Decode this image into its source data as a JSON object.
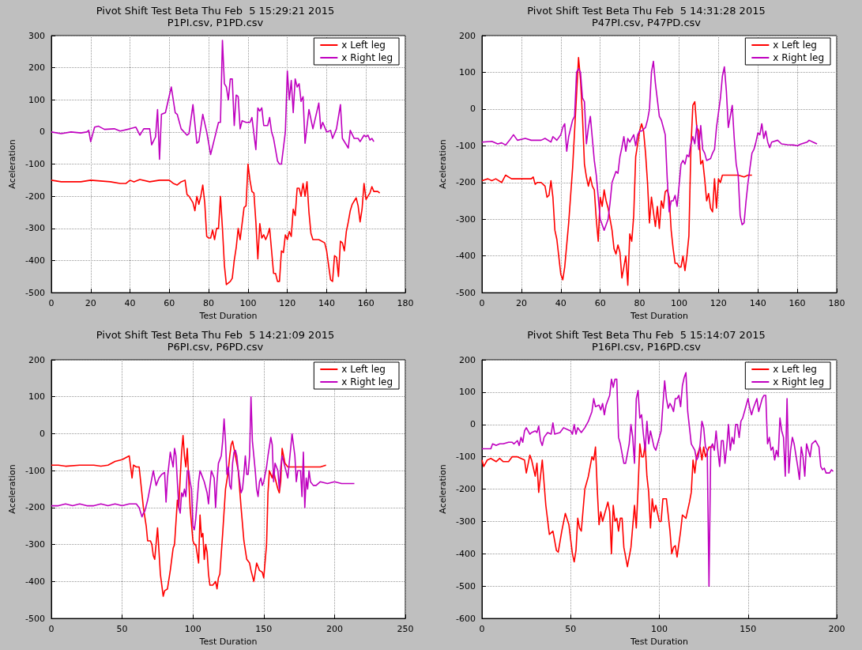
{
  "chart_data": [
    {
      "type": "line",
      "title": "Pivot Shift Test Beta Thu Feb  5 15:29:21 2015",
      "subtitle": "P1PI.csv, P1PD.csv",
      "xlabel": "Test Duration",
      "ylabel": "Aceleration",
      "xlim": [
        0,
        180
      ],
      "xticks": [
        0,
        20,
        40,
        60,
        80,
        100,
        120,
        140,
        160,
        180
      ],
      "ylim": [
        -500,
        300
      ],
      "yticks": [
        -500,
        -400,
        -300,
        -200,
        -100,
        0,
        100,
        200,
        300
      ],
      "grid": true,
      "legend": "top right",
      "series": [
        {
          "name": "x Left leg",
          "color": "#ff0000",
          "x": [
            0,
            5,
            10,
            15,
            20,
            30,
            35,
            38,
            40,
            42,
            45,
            50,
            55,
            60,
            62,
            64,
            66,
            68,
            69,
            70,
            72,
            73,
            74,
            75,
            76,
            77,
            78,
            79,
            80,
            81,
            82,
            83,
            84,
            85,
            86,
            87,
            88,
            89,
            90,
            91,
            92,
            93,
            94,
            95,
            96,
            98,
            99,
            100,
            101,
            102,
            103,
            104,
            105,
            106,
            107,
            108,
            109,
            110,
            111,
            112,
            113,
            114,
            115,
            116,
            117,
            118,
            119,
            120,
            121,
            122,
            123,
            124,
            125,
            126,
            127,
            128,
            129,
            130,
            131,
            132,
            133,
            136,
            139,
            140,
            142,
            143,
            144,
            145,
            146,
            147,
            148,
            149,
            150,
            151,
            152,
            153,
            154,
            155,
            156,
            157,
            158,
            159,
            160,
            161,
            162,
            163,
            164,
            165,
            166,
            167
          ],
          "values": [
            -150,
            -155,
            -155,
            -155,
            -150,
            -155,
            -160,
            -160,
            -150,
            -155,
            -148,
            -155,
            -150,
            -150,
            -160,
            -165,
            -155,
            -150,
            -195,
            -200,
            -220,
            -245,
            -200,
            -225,
            -200,
            -165,
            -220,
            -325,
            -330,
            -330,
            -305,
            -335,
            -300,
            -300,
            -200,
            -300,
            -415,
            -475,
            -470,
            -465,
            -455,
            -400,
            -360,
            -300,
            -335,
            -235,
            -230,
            -100,
            -150,
            -185,
            -190,
            -280,
            -395,
            -285,
            -330,
            -320,
            -335,
            -320,
            -300,
            -370,
            -440,
            -440,
            -465,
            -465,
            -370,
            -375,
            -320,
            -335,
            -310,
            -325,
            -240,
            -260,
            -175,
            -175,
            -200,
            -160,
            -200,
            -155,
            -250,
            -315,
            -335,
            -335,
            -345,
            -370,
            -460,
            -465,
            -385,
            -390,
            -450,
            -340,
            -345,
            -370,
            -310,
            -280,
            -245,
            -225,
            -215,
            -205,
            -230,
            -280,
            -240,
            -160,
            -210,
            -200,
            -190,
            -170,
            -185,
            -185,
            -185,
            -190
          ]
        },
        {
          "name": "x Right leg",
          "color": "#bf00bf",
          "x": [
            0,
            5,
            10,
            15,
            18,
            19,
            20,
            22,
            24,
            27,
            32,
            35,
            40,
            43,
            45,
            47,
            50,
            51,
            53,
            54,
            55,
            56,
            58,
            61,
            63,
            64,
            66,
            69,
            70,
            72,
            74,
            75,
            77,
            79,
            81,
            85,
            86,
            87,
            88,
            89,
            90,
            91,
            92,
            93,
            94,
            95,
            96,
            97,
            99,
            101,
            102,
            104,
            105,
            106,
            107,
            108,
            110,
            111,
            112,
            113,
            115,
            116,
            117,
            119,
            120,
            121,
            122,
            123,
            124,
            125,
            126,
            127,
            128,
            129,
            131,
            133,
            136,
            137,
            138,
            140,
            142,
            143,
            145,
            147,
            148,
            151,
            152,
            154,
            156,
            157,
            159,
            160,
            161,
            162,
            163,
            164
          ],
          "values": [
            0,
            -5,
            0,
            -3,
            0,
            5,
            -30,
            15,
            18,
            8,
            10,
            3,
            10,
            15,
            -10,
            10,
            10,
            -40,
            -15,
            70,
            -85,
            55,
            60,
            140,
            60,
            55,
            10,
            -10,
            -5,
            85,
            -35,
            -30,
            55,
            0,
            -70,
            30,
            30,
            285,
            150,
            140,
            100,
            165,
            165,
            20,
            115,
            110,
            10,
            35,
            30,
            30,
            45,
            -55,
            75,
            65,
            75,
            20,
            20,
            45,
            0,
            -20,
            -90,
            -100,
            -100,
            0,
            190,
            100,
            160,
            60,
            165,
            140,
            150,
            95,
            110,
            -35,
            70,
            10,
            90,
            10,
            30,
            0,
            5,
            -20,
            10,
            85,
            -20,
            -50,
            5,
            -20,
            -20,
            -30,
            -10,
            -15,
            -10,
            -25,
            -20,
            -30
          ]
        }
      ]
    },
    {
      "type": "line",
      "title": "Pivot Shift Test Beta Thu Feb  5 14:31:28 2015",
      "subtitle": "P47PI.csv, P47PD.csv",
      "xlabel": "Test Duration",
      "ylabel": "Aceleration",
      "xlim": [
        0,
        180
      ],
      "xticks": [
        0,
        20,
        40,
        60,
        80,
        100,
        120,
        140,
        160,
        180
      ],
      "ylim": [
        -500,
        200
      ],
      "yticks": [
        -500,
        -400,
        -300,
        -200,
        -100,
        0,
        100,
        200
      ],
      "grid": true,
      "legend": "top right",
      "series": [
        {
          "name": "x Left leg",
          "color": "#ff0000",
          "x": [
            0,
            3,
            5,
            7,
            10,
            12,
            15,
            20,
            25,
            26,
            27,
            28,
            30,
            32,
            33,
            34,
            35,
            36,
            37,
            38,
            40,
            41,
            42,
            44,
            46,
            48,
            49,
            50,
            51,
            52,
            53,
            54,
            55,
            56,
            57,
            58,
            59,
            60,
            61,
            62,
            63,
            64,
            65,
            66,
            67,
            68,
            69,
            70,
            71,
            72,
            73,
            74,
            75,
            76,
            77,
            78,
            80,
            81,
            82,
            83,
            84,
            85,
            86,
            87,
            88,
            89,
            90,
            91,
            92,
            93,
            94,
            95,
            96,
            97,
            98,
            99,
            100,
            101,
            102,
            103,
            104,
            105,
            106,
            107,
            108,
            109,
            110,
            111,
            112,
            113,
            114,
            115,
            116,
            117,
            118,
            119,
            120,
            121,
            122,
            125,
            130,
            133,
            135,
            137
          ],
          "values": [
            -195,
            -190,
            -195,
            -190,
            -200,
            -180,
            -190,
            -190,
            -190,
            -185,
            -205,
            -200,
            -200,
            -210,
            -240,
            -235,
            -195,
            -240,
            -330,
            -355,
            -450,
            -465,
            -430,
            -310,
            -160,
            40,
            140,
            80,
            -20,
            -150,
            -185,
            -210,
            -185,
            -210,
            -220,
            -300,
            -360,
            -240,
            -265,
            -220,
            -250,
            -270,
            -300,
            -330,
            -380,
            -395,
            -370,
            -390,
            -460,
            -430,
            -400,
            -480,
            -340,
            -360,
            -290,
            -130,
            -60,
            -40,
            -60,
            -120,
            -200,
            -310,
            -240,
            -280,
            -320,
            -265,
            -325,
            -250,
            -270,
            -225,
            -220,
            -240,
            -330,
            -380,
            -420,
            -420,
            -430,
            -430,
            -400,
            -440,
            -400,
            -345,
            -110,
            10,
            20,
            -50,
            -60,
            -150,
            -140,
            -190,
            -250,
            -230,
            -270,
            -280,
            -190,
            -270,
            -190,
            -200,
            -180,
            -180,
            -180,
            -185,
            -180,
            -180
          ]
        },
        {
          "name": "x Right leg",
          "color": "#bf00bf",
          "x": [
            0,
            5,
            8,
            10,
            12,
            14,
            16,
            18,
            22,
            25,
            30,
            32,
            35,
            36,
            38,
            40,
            41,
            42,
            43,
            44,
            46,
            47,
            48,
            49,
            50,
            51,
            52,
            53,
            54,
            55,
            56,
            57,
            58,
            59,
            60,
            62,
            64,
            65,
            66,
            68,
            69,
            70,
            71,
            72,
            73,
            74,
            75,
            76,
            77,
            78,
            79,
            80,
            81,
            83,
            84,
            85,
            86,
            87,
            88,
            90,
            91,
            93,
            94,
            95,
            96,
            97,
            98,
            99,
            100,
            101,
            102,
            103,
            104,
            105,
            106,
            107,
            108,
            109,
            110,
            111,
            112,
            113,
            114,
            116,
            117,
            118,
            119,
            120,
            121,
            122,
            123,
            124,
            125,
            126,
            127,
            128,
            129,
            130,
            131,
            132,
            133,
            134,
            135,
            136,
            137,
            138,
            139,
            140,
            141,
            142,
            143,
            144,
            145,
            146,
            147,
            150,
            152,
            155,
            158,
            160,
            162,
            165,
            166,
            168,
            170
          ],
          "values": [
            -90,
            -88,
            -95,
            -92,
            -98,
            -85,
            -70,
            -85,
            -80,
            -85,
            -85,
            -80,
            -90,
            -75,
            -85,
            -70,
            -50,
            -40,
            -115,
            -75,
            -30,
            -20,
            100,
            110,
            100,
            30,
            20,
            -95,
            -50,
            -20,
            -80,
            -140,
            -180,
            -240,
            -300,
            -330,
            -300,
            -255,
            -200,
            -170,
            -175,
            -130,
            -105,
            -75,
            -115,
            -80,
            -90,
            -80,
            -70,
            -100,
            -70,
            -60,
            -60,
            -50,
            -30,
            0,
            100,
            130,
            70,
            -20,
            -30,
            -70,
            -190,
            -280,
            -250,
            -250,
            -235,
            -265,
            -210,
            -150,
            -140,
            -150,
            -125,
            -130,
            -95,
            -75,
            -95,
            -45,
            -110,
            -45,
            -110,
            -120,
            -140,
            -135,
            -120,
            -110,
            -50,
            -10,
            30,
            90,
            115,
            50,
            -50,
            -20,
            10,
            -80,
            -150,
            -180,
            -290,
            -315,
            -310,
            -250,
            -200,
            -160,
            -120,
            -110,
            -90,
            -65,
            -70,
            -40,
            -80,
            -60,
            -90,
            -105,
            -90,
            -85,
            -95,
            -97,
            -98,
            -100,
            -95,
            -90,
            -85,
            -90,
            -95
          ]
        }
      ]
    },
    {
      "type": "line",
      "title": "Pivot Shift Test Beta Thu Feb  5 14:21:09 2015",
      "subtitle": "P6PI.csv, P6PD.csv",
      "xlabel": "Test Duration",
      "ylabel": "Aceleration",
      "xlim": [
        0,
        250
      ],
      "xticks": [
        0,
        50,
        100,
        150,
        200,
        250
      ],
      "ylim": [
        -500,
        200
      ],
      "yticks": [
        -500,
        -400,
        -300,
        -200,
        -100,
        0,
        100,
        200
      ],
      "grid": true,
      "legend": "top right",
      "series": [
        {
          "name": "x Left leg",
          "color": "#ff0000",
          "x": [
            0,
            5,
            10,
            20,
            30,
            35,
            40,
            45,
            50,
            55,
            57,
            58,
            60,
            62,
            65,
            67,
            68,
            70,
            71,
            72,
            73,
            75,
            77,
            79,
            80,
            82,
            84,
            86,
            87,
            89,
            90,
            91,
            92,
            93,
            94,
            95,
            96,
            98,
            100,
            101,
            102,
            104,
            105,
            106,
            107,
            108,
            109,
            110,
            111,
            112,
            114,
            116,
            117,
            118,
            119,
            121,
            123,
            125,
            126,
            127,
            128,
            130,
            132,
            134,
            136,
            138,
            140,
            141,
            143,
            145,
            147,
            149,
            150,
            152,
            153,
            154,
            155,
            156,
            157,
            158,
            160,
            161,
            162,
            163,
            165,
            167,
            170,
            175,
            180,
            185,
            190,
            194
          ],
          "values": [
            -85,
            -85,
            -88,
            -85,
            -85,
            -88,
            -85,
            -75,
            -70,
            -60,
            -120,
            -85,
            -90,
            -90,
            -200,
            -250,
            -290,
            -290,
            -300,
            -330,
            -340,
            -255,
            -380,
            -440,
            -425,
            -420,
            -370,
            -310,
            -300,
            -180,
            -200,
            -120,
            -50,
            -5,
            -60,
            -90,
            -40,
            -200,
            -290,
            -300,
            -300,
            -350,
            -220,
            -280,
            -270,
            -340,
            -300,
            -320,
            -380,
            -410,
            -410,
            -400,
            -420,
            -390,
            -380,
            -270,
            -150,
            -100,
            -60,
            -30,
            -20,
            -60,
            -100,
            -200,
            -290,
            -340,
            -350,
            -370,
            -400,
            -350,
            -370,
            -375,
            -390,
            -300,
            -160,
            -100,
            -110,
            -120,
            -100,
            -120,
            -150,
            -160,
            -130,
            -40,
            -80,
            -90,
            -90,
            -90,
            -90,
            -90,
            -90,
            -85
          ]
        },
        {
          "name": "x Right leg",
          "color": "#bf00bf",
          "x": [
            0,
            5,
            10,
            15,
            20,
            25,
            30,
            35,
            40,
            45,
            50,
            55,
            60,
            62,
            64,
            65,
            66,
            68,
            70,
            72,
            74,
            76,
            78,
            80,
            81,
            82,
            84,
            86,
            87,
            88,
            90,
            91,
            92,
            93,
            94,
            95,
            96,
            97,
            98,
            99,
            100,
            101,
            102,
            104,
            105,
            106,
            108,
            110,
            111,
            112,
            113,
            115,
            116,
            117,
            118,
            120,
            121,
            122,
            123,
            124,
            125,
            126,
            127,
            128,
            129,
            130,
            131,
            132,
            133,
            134,
            135,
            136,
            137,
            138,
            139,
            140,
            141,
            142,
            143,
            144,
            145,
            146,
            147,
            148,
            149,
            150,
            152,
            153,
            155,
            156,
            157,
            158,
            160,
            161,
            162,
            163,
            165,
            167,
            170,
            172,
            173,
            174,
            176,
            177,
            178,
            179,
            180,
            181,
            182,
            183,
            185,
            187,
            190,
            195,
            200,
            205,
            210,
            214
          ],
          "values": [
            -195,
            -195,
            -190,
            -195,
            -190,
            -195,
            -195,
            -190,
            -195,
            -190,
            -195,
            -190,
            -190,
            -200,
            -225,
            -215,
            -210,
            -180,
            -140,
            -100,
            -140,
            -120,
            -110,
            -105,
            -185,
            -120,
            -50,
            -90,
            -40,
            -60,
            -200,
            -215,
            -160,
            -170,
            -150,
            -170,
            -100,
            -100,
            -130,
            -150,
            -250,
            -260,
            -230,
            -130,
            -100,
            -110,
            -130,
            -160,
            -190,
            -140,
            -100,
            -120,
            -200,
            -130,
            -80,
            -60,
            -20,
            40,
            -20,
            -110,
            -90,
            -140,
            -150,
            -80,
            -50,
            -45,
            -60,
            -100,
            -130,
            -160,
            -150,
            -110,
            -60,
            -110,
            -110,
            -60,
            100,
            -20,
            -60,
            -100,
            -150,
            -170,
            -130,
            -120,
            -140,
            -130,
            -90,
            -60,
            -10,
            -30,
            -130,
            -80,
            -100,
            -150,
            -90,
            -60,
            -90,
            -120,
            0,
            -60,
            -130,
            -100,
            -100,
            -170,
            -50,
            -200,
            -120,
            -150,
            -100,
            -130,
            -140,
            -140,
            -130,
            -135,
            -130,
            -135,
            -135,
            -135
          ]
        }
      ]
    },
    {
      "type": "line",
      "title": "Pivot Shift Test Beta Thu Feb  5 15:14:07 2015",
      "subtitle": "P16PI.csv, P16PD.csv",
      "xlabel": "Test Duration",
      "ylabel": "Aceleration",
      "xlim": [
        0,
        200
      ],
      "xticks": [
        0,
        50,
        100,
        150,
        200
      ],
      "ylim": [
        -600,
        200
      ],
      "yticks": [
        -600,
        -500,
        -400,
        -300,
        -200,
        -100,
        0,
        100,
        200
      ],
      "grid": true,
      "legend": "top right",
      "series": [
        {
          "name": "x Left leg",
          "color": "#ff0000",
          "x": [
            0,
            1,
            3,
            5,
            8,
            10,
            12,
            15,
            17,
            20,
            22,
            24,
            25,
            27,
            28,
            30,
            31,
            32,
            34,
            36,
            38,
            40,
            42,
            43,
            45,
            47,
            49,
            51,
            52,
            53,
            54,
            55,
            56,
            58,
            60,
            62,
            63,
            64,
            65,
            66,
            67,
            68,
            70,
            71,
            72,
            73,
            74,
            75,
            76,
            77,
            78,
            79,
            80,
            82,
            84,
            86,
            87,
            88,
            89,
            90,
            91,
            92,
            93,
            94,
            95,
            96,
            97,
            98,
            100,
            101,
            102,
            104,
            106,
            107,
            108,
            109,
            110,
            112,
            113,
            115,
            117,
            118,
            119,
            120,
            121,
            123,
            124,
            125,
            126,
            128,
            130
          ],
          "values": [
            -110,
            -130,
            -110,
            -105,
            -115,
            -105,
            -115,
            -115,
            -100,
            -100,
            -105,
            -110,
            -150,
            -95,
            -110,
            -160,
            -120,
            -210,
            -110,
            -250,
            -340,
            -330,
            -390,
            -395,
            -330,
            -275,
            -310,
            -400,
            -425,
            -390,
            -290,
            -320,
            -330,
            -200,
            -160,
            -100,
            -110,
            -70,
            -200,
            -310,
            -270,
            -300,
            -260,
            -240,
            -270,
            -400,
            -250,
            -300,
            -290,
            -330,
            -290,
            -290,
            -380,
            -440,
            -380,
            -250,
            -320,
            -200,
            -60,
            -100,
            -100,
            -60,
            -160,
            -210,
            -320,
            -230,
            -270,
            -250,
            -300,
            -300,
            -230,
            -230,
            -330,
            -400,
            -380,
            -375,
            -410,
            -330,
            -280,
            -290,
            -240,
            -210,
            -110,
            -150,
            -100,
            -70,
            -110,
            -70,
            -100,
            -70,
            -70
          ]
        },
        {
          "name": "x Right leg",
          "color": "#bf00bf",
          "x": [
            0,
            5,
            6,
            8,
            10,
            12,
            15,
            17,
            18,
            20,
            21,
            22,
            23,
            24,
            25,
            27,
            28,
            30,
            31,
            32,
            33,
            34,
            35,
            37,
            39,
            40,
            41,
            44,
            46,
            48,
            50,
            51,
            52,
            53,
            54,
            56,
            58,
            59,
            60,
            62,
            63,
            64,
            66,
            67,
            68,
            69,
            70,
            72,
            73,
            74,
            75,
            76,
            77,
            78,
            80,
            81,
            83,
            84,
            85,
            86,
            87,
            88,
            89,
            90,
            91,
            92,
            93,
            94,
            95,
            97,
            98,
            100,
            101,
            102,
            103,
            104,
            105,
            106,
            107,
            108,
            109,
            110,
            111,
            112,
            113,
            114,
            115,
            116,
            118,
            119,
            120,
            121,
            122,
            123,
            124,
            125,
            126,
            127,
            128,
            129,
            130,
            131,
            132,
            133,
            134,
            135,
            136,
            137,
            138,
            139,
            140,
            141,
            142,
            143,
            144,
            145,
            146,
            147,
            148,
            150,
            151,
            152,
            153,
            155,
            156,
            157,
            158,
            159,
            160,
            161,
            162,
            163,
            164,
            165,
            166,
            167,
            168,
            169,
            170,
            171,
            172,
            173,
            174,
            175,
            176,
            178,
            179,
            180,
            181,
            182,
            183,
            184,
            185,
            186,
            188,
            190,
            191,
            192,
            193,
            194,
            196,
            197,
            198
          ],
          "values": [
            -75,
            -75,
            -60,
            -65,
            -60,
            -60,
            -55,
            -55,
            -60,
            -50,
            -65,
            -40,
            -55,
            -20,
            -10,
            -30,
            -25,
            -20,
            -25,
            -5,
            -50,
            -65,
            -40,
            -25,
            -30,
            5,
            -30,
            -25,
            -10,
            -15,
            -20,
            -30,
            0,
            -30,
            -10,
            -25,
            -10,
            0,
            10,
            40,
            80,
            55,
            60,
            45,
            65,
            30,
            60,
            90,
            140,
            115,
            140,
            140,
            -40,
            -60,
            -120,
            -120,
            -60,
            0,
            -40,
            -120,
            80,
            105,
            20,
            30,
            -30,
            -80,
            10,
            -60,
            -20,
            -70,
            -80,
            -40,
            -20,
            60,
            135,
            80,
            50,
            65,
            55,
            40,
            80,
            80,
            90,
            55,
            120,
            145,
            160,
            40,
            -60,
            -70,
            -80,
            -110,
            -100,
            -60,
            10,
            -10,
            -70,
            -80,
            -500,
            -70,
            -60,
            -80,
            -20,
            -80,
            -130,
            -50,
            -50,
            -120,
            -70,
            0,
            -80,
            -40,
            -60,
            0,
            0,
            -40,
            10,
            20,
            40,
            80,
            50,
            30,
            50,
            80,
            40,
            60,
            80,
            90,
            90,
            -60,
            -40,
            -80,
            -70,
            -110,
            -80,
            -100,
            20,
            -20,
            -40,
            -160,
            80,
            -150,
            -80,
            -40,
            -60,
            -130,
            -170,
            -70,
            -100,
            -160,
            -60,
            -80,
            -100,
            -60,
            -50,
            -70,
            -130,
            -140,
            -135,
            -150,
            -150,
            -140,
            -145
          ]
        }
      ]
    }
  ]
}
